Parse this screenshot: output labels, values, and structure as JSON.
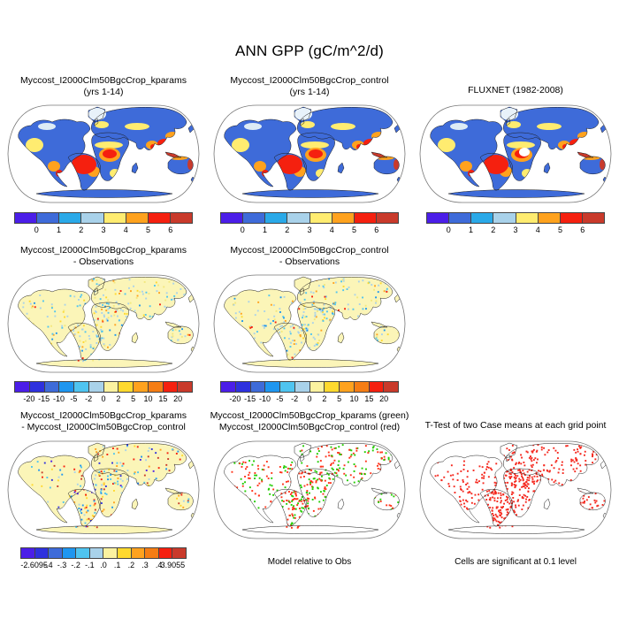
{
  "title": "ANN GPP (gC/m^2/d)",
  "panels": [
    {
      "title_lines": [
        "Myccost_I2000Clm50BgcCrop_kparams",
        "(yrs 1-14)"
      ],
      "colorbar": "gpp"
    },
    {
      "title_lines": [
        "Myccost_I2000Clm50BgcCrop_control",
        "(yrs 1-14)"
      ],
      "colorbar": "gpp"
    },
    {
      "title_lines": [
        "FLUXNET (1982-2008)"
      ],
      "colorbar": "gpp"
    },
    {
      "title_lines": [
        "Myccost_I2000Clm50BgcCrop_kparams",
        "- Observations"
      ],
      "colorbar": "bias"
    },
    {
      "title_lines": [
        "Myccost_I2000Clm50BgcCrop_control",
        "- Observations"
      ],
      "colorbar": "bias"
    },
    {
      "title_lines": [
        "Myccost_I2000Clm50BgcCrop_kparams",
        "- Myccost_I2000Clm50BgcCrop_control"
      ],
      "colorbar": "change"
    },
    {
      "title_lines": [
        "Myccost_I2000Clm50BgcCrop_kparams (green)",
        "Myccost_I2000Clm50BgcCrop_control (red)"
      ],
      "caption": "Model relative to Obs"
    },
    {
      "title_lines": [
        "T-Test of two Case means at each grid point"
      ],
      "caption": "Cells are significant at 0.1 level"
    }
  ],
  "colorbars": {
    "gpp": {
      "colors": [
        "#4B1EE8",
        "#3E6BD9",
        "#2AA9E8",
        "#A9D2EA",
        "#FFEC70",
        "#FFA21E",
        "#F5200F",
        "#C93A2B"
      ],
      "labels": [
        "0",
        "1",
        "2",
        "3",
        "4",
        "5",
        "6"
      ]
    },
    "bias": {
      "colors": [
        "#4B1EE8",
        "#2E31DE",
        "#3E6BD9",
        "#1E96F0",
        "#4FC4F0",
        "#A9D2EA",
        "#FBF2A0",
        "#FFD92E",
        "#FFA21E",
        "#F57D14",
        "#F5200F",
        "#C93A2B"
      ],
      "labels": [
        "-20",
        "-15",
        "-10",
        "-5",
        "-2",
        "0",
        "2",
        "5",
        "10",
        "15",
        "20"
      ]
    },
    "change": {
      "colors": [
        "#4B1EE8",
        "#2E31DE",
        "#3E6BD9",
        "#1E96F0",
        "#4FC4F0",
        "#A9D2EA",
        "#FBF2A0",
        "#FFD92E",
        "#FFA21E",
        "#F57D14",
        "#F5200F",
        "#C93A2B"
      ],
      "labels": [
        "-2.6095",
        "-.4",
        "-.3",
        "-.2",
        "-.1",
        ".0",
        ".1",
        ".2",
        ".3",
        ".4",
        "3.9055"
      ]
    }
  },
  "map_markers": {
    "green": "#22CC00",
    "red": "#FF3319",
    "significant_red": "#F5281E"
  },
  "chart_data": {
    "type": "heatmap",
    "description": "3x3 grid of global Robinson-projection map panels from a land-model diagnostics figure comparing annual GPP between two model cases and FLUXNET observations",
    "figure_title": "ANN GPP (gC/m^2/d)",
    "panels": [
      {
        "row": 1,
        "col": 1,
        "title": "Myccost_I2000Clm50BgcCrop_kparams (yrs 1-14)",
        "colorbar_ticks": [
          0,
          1,
          2,
          3,
          4,
          5,
          6
        ],
        "n_color_boxes": 8
      },
      {
        "row": 1,
        "col": 2,
        "title": "Myccost_I2000Clm50BgcCrop_control (yrs 1-14)",
        "colorbar_ticks": [
          0,
          1,
          2,
          3,
          4,
          5,
          6
        ],
        "n_color_boxes": 8
      },
      {
        "row": 1,
        "col": 3,
        "title": "FLUXNET (1982-2008)",
        "colorbar_ticks": [
          0,
          1,
          2,
          3,
          4,
          5,
          6
        ],
        "n_color_boxes": 8
      },
      {
        "row": 2,
        "col": 1,
        "title": "Myccost_I2000Clm50BgcCrop_kparams - Observations",
        "colorbar_ticks": [
          -20,
          -15,
          -10,
          -5,
          -2,
          0,
          2,
          5,
          10,
          15,
          20
        ],
        "n_color_boxes": 12
      },
      {
        "row": 2,
        "col": 2,
        "title": "Myccost_I2000Clm50BgcCrop_control - Observations",
        "colorbar_ticks": [
          -20,
          -15,
          -10,
          -5,
          -2,
          0,
          2,
          5,
          10,
          15,
          20
        ],
        "n_color_boxes": 12
      },
      {
        "row": 3,
        "col": 1,
        "title": "Myccost_I2000Clm50BgcCrop_kparams - Myccost_I2000Clm50BgcCrop_control",
        "colorbar_ticks": [
          "-2.6095",
          "-.4",
          "-.3",
          "-.2",
          "-.1",
          ".0",
          ".1",
          ".2",
          ".3",
          ".4",
          "3.9055"
        ],
        "n_color_boxes": 12
      },
      {
        "row": 3,
        "col": 2,
        "title": "Myccost_I2000Clm50BgcCrop_kparams (green) Myccost_I2000Clm50BgcCrop_control (red)",
        "caption": "Model relative to Obs"
      },
      {
        "row": 3,
        "col": 3,
        "title": "T-Test of two Case means at each grid point",
        "caption": "Cells are significant at 0.1 level"
      }
    ]
  }
}
